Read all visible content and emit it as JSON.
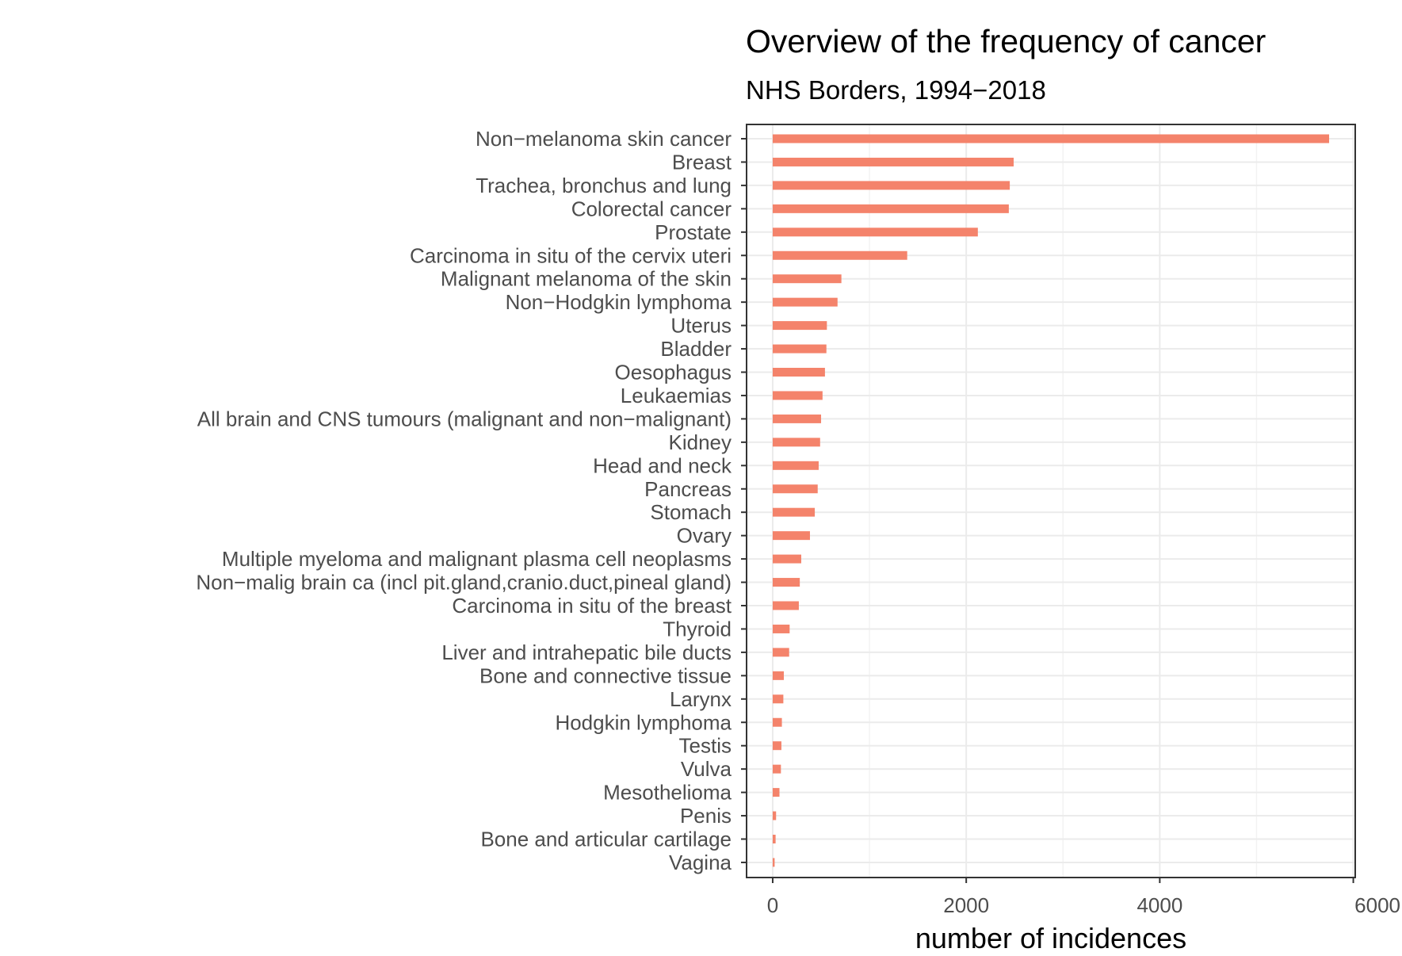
{
  "chart_data": {
    "type": "bar",
    "orientation": "horizontal",
    "title": "Overview of the frequency of cancer",
    "subtitle": "NHS Borders, 1994−2018",
    "xlabel": "number of incidences",
    "ylabel": "",
    "xlim": [
      -270,
      6020
    ],
    "xticks": [
      0,
      2000,
      4000,
      6000
    ],
    "xtick_labels": [
      "0",
      "2000",
      "4000",
      "6000"
    ],
    "grid": true,
    "bar_color": "#F4836B",
    "categories": [
      "Non−melanoma skin cancer",
      "Breast",
      "Trachea, bronchus and lung",
      "Colorectal cancer",
      "Prostate",
      "Carcinoma in situ of the cervix uteri",
      "Malignant melanoma of the skin",
      "Non−Hodgkin lymphoma",
      "Uterus",
      "Bladder",
      "Oesophagus",
      "Leukaemias",
      "All brain and CNS tumours (malignant and non−malignant)",
      "Kidney",
      "Head and neck",
      "Pancreas",
      "Stomach",
      "Ovary",
      "Multiple myeloma and malignant plasma cell neoplasms",
      "Non−malig brain ca (incl pit.gland,cranio.duct,pineal gland)",
      "Carcinoma in situ of the breast",
      "Thyroid",
      "Liver and intrahepatic bile ducts",
      "Bone and connective tissue",
      "Larynx",
      "Hodgkin lymphoma",
      "Testis",
      "Vulva",
      "Mesothelioma",
      "Penis",
      "Bone and articular cartilage",
      "Vagina"
    ],
    "values": [
      5750,
      2490,
      2450,
      2440,
      2120,
      1390,
      710,
      670,
      560,
      555,
      540,
      515,
      500,
      490,
      475,
      465,
      435,
      385,
      295,
      280,
      270,
      175,
      170,
      115,
      110,
      95,
      90,
      85,
      70,
      35,
      30,
      20
    ]
  }
}
